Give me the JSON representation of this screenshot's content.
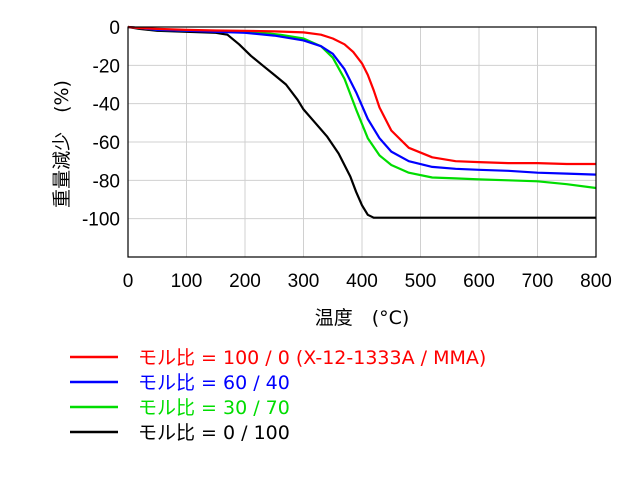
{
  "chart_data": {
    "type": "line",
    "xlabel": "温度　(°C)",
    "ylabel": "重量減少　(%)",
    "xlim": [
      0,
      800
    ],
    "ylim": [
      -120,
      0
    ],
    "xticks": [
      "0",
      "100",
      "200",
      "300",
      "400",
      "500",
      "600",
      "700",
      "800"
    ],
    "yticks": [
      "0",
      "-20",
      "-40",
      "-60",
      "-80",
      "-100"
    ],
    "grid": true,
    "legend_position": "bottom",
    "series": [
      {
        "name": "モル比 = 100 / 0 (X-12-1333A / MMA)",
        "color": "#ff0000",
        "x": [
          0,
          20,
          50,
          100,
          150,
          200,
          250,
          300,
          330,
          350,
          370,
          385,
          400,
          410,
          420,
          430,
          450,
          480,
          520,
          560,
          600,
          650,
          700,
          750,
          800
        ],
        "y": [
          0,
          -0.5,
          -1,
          -1.5,
          -1.8,
          -2,
          -2.3,
          -2.8,
          -4,
          -6,
          -9,
          -13,
          -19,
          -25,
          -33,
          -42,
          -54,
          -63,
          -68,
          -70,
          -70.5,
          -71,
          -71,
          -71.5,
          -71.5
        ]
      },
      {
        "name": "モル比 = 60 / 40",
        "color": "#0000ff",
        "x": [
          0,
          20,
          50,
          100,
          150,
          200,
          250,
          300,
          330,
          350,
          370,
          390,
          410,
          430,
          450,
          480,
          520,
          560,
          600,
          650,
          700,
          750,
          800
        ],
        "y": [
          0,
          -0.5,
          -1.5,
          -2,
          -2.5,
          -3,
          -4.5,
          -7,
          -10,
          -14,
          -22,
          -34,
          -48,
          -58,
          -65,
          -70,
          -73,
          -74,
          -74.5,
          -75,
          -76,
          -76.5,
          -77
        ]
      },
      {
        "name": "モル比 = 30 / 70",
        "color": "#00dd00",
        "x": [
          0,
          20,
          50,
          100,
          150,
          200,
          230,
          260,
          300,
          330,
          350,
          370,
          390,
          410,
          430,
          450,
          480,
          520,
          560,
          600,
          650,
          700,
          750,
          800
        ],
        "y": [
          0,
          -0.5,
          -1.5,
          -2,
          -2,
          -2.5,
          -3,
          -4,
          -6,
          -10,
          -16,
          -27,
          -43,
          -58,
          -67,
          -72,
          -76,
          -78.5,
          -79,
          -79.5,
          -80,
          -80.5,
          -82,
          -84
        ]
      },
      {
        "name": "モル比 = 0 / 100",
        "color": "#000000",
        "x": [
          0,
          20,
          50,
          100,
          150,
          170,
          190,
          210,
          230,
          250,
          270,
          290,
          300,
          320,
          340,
          360,
          380,
          390,
          400,
          410,
          420,
          500,
          600,
          700,
          800
        ],
        "y": [
          0,
          -1,
          -2,
          -2.5,
          -3,
          -4,
          -9,
          -15,
          -20,
          -25,
          -30,
          -38,
          -43,
          -50,
          -57,
          -66,
          -78,
          -86,
          -93,
          -98,
          -99.5,
          -99.5,
          -99.5,
          -99.5,
          -99.5
        ]
      }
    ]
  }
}
